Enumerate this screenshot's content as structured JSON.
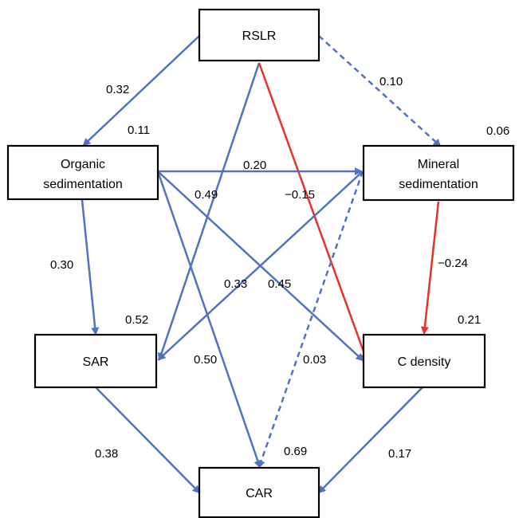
{
  "nodes": {
    "rslr": {
      "label": "RSLR"
    },
    "organic": {
      "label_lines": [
        "Organic",
        "sedimentation"
      ],
      "r2": "0.11"
    },
    "mineral": {
      "label_lines": [
        "Mineral",
        "sedimentation"
      ],
      "r2": "0.06"
    },
    "sar": {
      "label": "SAR",
      "r2": "0.52"
    },
    "cdensity": {
      "label": "C density",
      "r2": "0.21"
    },
    "car": {
      "label": "CAR",
      "r2": "0.69"
    }
  },
  "paths": [
    {
      "from": "RSLR",
      "to": "Organic sedimentation",
      "coef": "0.32",
      "sign": "positive",
      "significant": true
    },
    {
      "from": "RSLR",
      "to": "Mineral sedimentation",
      "coef": "0.10",
      "sign": "positive",
      "significant": false
    },
    {
      "from": "RSLR",
      "to": "SAR",
      "coef": "0.49",
      "sign": "positive",
      "significant": true
    },
    {
      "from": "RSLR",
      "to": "C density",
      "coef": "−0.15",
      "sign": "negative",
      "significant": true
    },
    {
      "from": "Organic sedimentation",
      "to": "Mineral sedimentation",
      "coef": "0.20",
      "sign": "positive",
      "significant": true
    },
    {
      "from": "Organic sedimentation",
      "to": "SAR",
      "coef": "0.30",
      "sign": "positive",
      "significant": true
    },
    {
      "from": "Organic sedimentation",
      "to": "C density",
      "coef": "0.45",
      "sign": "positive",
      "significant": true
    },
    {
      "from": "Organic sedimentation",
      "to": "CAR",
      "coef": "0.50",
      "sign": "positive",
      "significant": true
    },
    {
      "from": "Mineral sedimentation",
      "to": "SAR",
      "coef": "0.33",
      "sign": "positive",
      "significant": true
    },
    {
      "from": "Mineral sedimentation",
      "to": "C density",
      "coef": "−0.24",
      "sign": "negative",
      "significant": true
    },
    {
      "from": "Mineral sedimentation",
      "to": "CAR",
      "coef": "0.03",
      "sign": "positive",
      "significant": false
    },
    {
      "from": "SAR",
      "to": "CAR",
      "coef": "0.38",
      "sign": "positive",
      "significant": true
    },
    {
      "from": "C density",
      "to": "CAR",
      "coef": "0.17",
      "sign": "positive",
      "significant": true
    }
  ],
  "colors": {
    "positive": "#4f72c4",
    "negative": "#e8312a",
    "box_border": "#000000"
  }
}
